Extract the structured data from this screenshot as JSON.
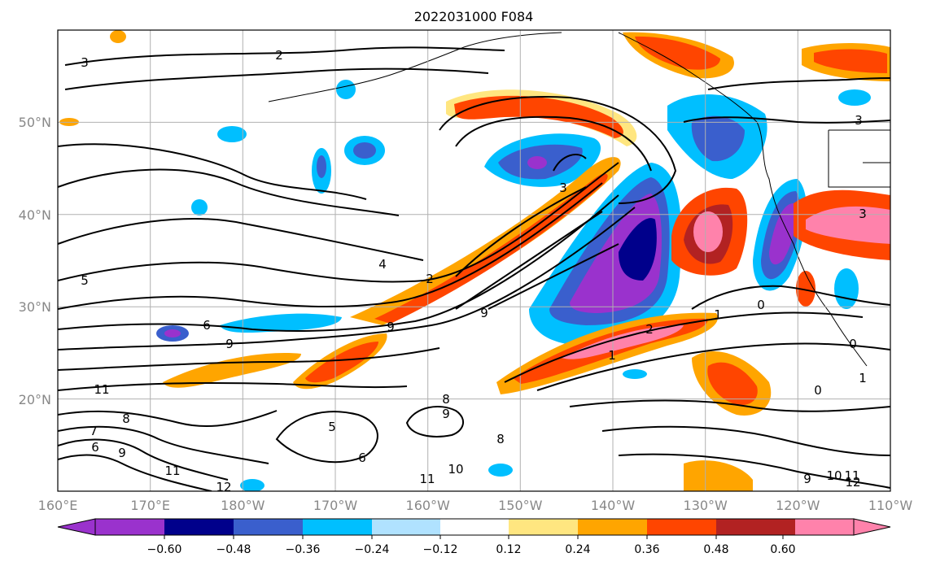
{
  "title": "2022031000 F084",
  "map": {
    "lon_range": [
      160,
      250
    ],
    "lat_range": [
      10,
      60
    ],
    "lon_ticks": [
      "160°E",
      "170°E",
      "180°W",
      "170°W",
      "160°W",
      "150°W",
      "140°W",
      "130°W",
      "120°W",
      "110°W"
    ],
    "lat_ticks": [
      "50°N",
      "40°N",
      "30°N",
      "20°N"
    ],
    "grid": true
  },
  "colorbar": {
    "labels": [
      "−0.60",
      "−0.48",
      "−0.36",
      "−0.24",
      "−0.12",
      "0.12",
      "0.24",
      "0.36",
      "0.48",
      "0.60"
    ],
    "colors": [
      "#9a32cd",
      "#00008b",
      "#3a5fcd",
      "#00bfff",
      "#b0e2ff",
      "#ffffff",
      "#ffe680",
      "#ffa500",
      "#ff4500",
      "#b22222",
      "#ff82ab"
    ],
    "extend": "both"
  },
  "contour_labels": [
    "2",
    "3",
    "4",
    "2",
    "9",
    "6",
    "9",
    "11",
    "8",
    "7",
    "6",
    "9",
    "11",
    "12",
    "5",
    "6",
    "8",
    "9",
    "8",
    "11",
    "10",
    "2",
    "1",
    "1",
    "0",
    "3",
    "0",
    "1",
    "0",
    "9",
    "10",
    "11",
    "12",
    "3",
    "9",
    "3",
    "5"
  ]
}
